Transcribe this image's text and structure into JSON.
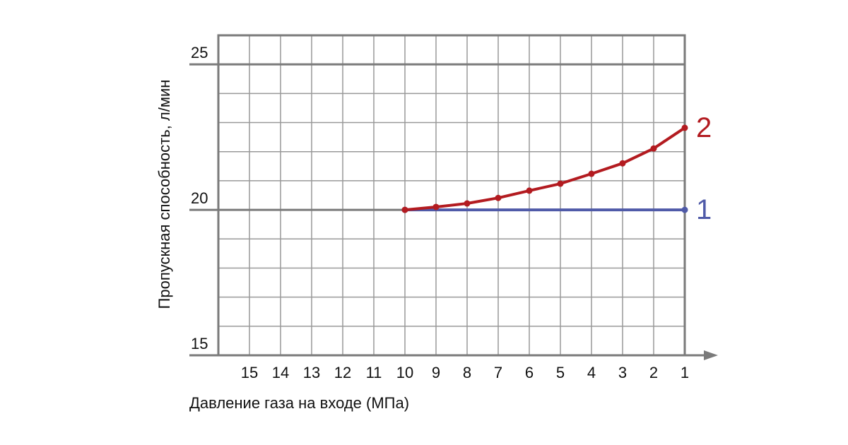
{
  "chart_data": {
    "type": "line",
    "xlabel": "Давление газа на входе (МПа)",
    "ylabel": "Пропускная способность, л/мин",
    "xlim": [
      16,
      1
    ],
    "xticks": [
      15,
      14,
      13,
      12,
      11,
      10,
      9,
      8,
      7,
      6,
      5,
      4,
      3,
      2,
      1
    ],
    "ylim": [
      15,
      26
    ],
    "yticks": [
      15,
      20,
      25
    ],
    "minor_yticks": [
      16,
      17,
      18,
      19,
      21,
      22,
      23,
      24,
      26
    ],
    "grid": true,
    "series": [
      {
        "name": "1",
        "color": "#4f5aa8",
        "x": [
          10,
          1
        ],
        "values": [
          20,
          20
        ]
      },
      {
        "name": "2",
        "color": "#b31b20",
        "x": [
          10,
          9,
          8,
          7,
          6,
          5,
          4,
          3,
          2,
          1
        ],
        "values": [
          20,
          20.1,
          20.22,
          20.41,
          20.66,
          20.9,
          21.24,
          21.6,
          22.11,
          22.82
        ]
      }
    ]
  }
}
